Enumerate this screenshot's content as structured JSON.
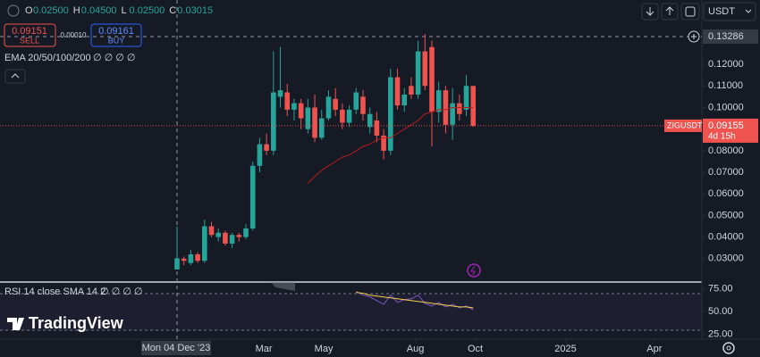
{
  "header": {
    "ohlc": [
      {
        "key": "O",
        "value": "0.02500"
      },
      {
        "key": "H",
        "value": "0.04500"
      },
      {
        "key": "L",
        "value": "0.02500"
      },
      {
        "key": "C",
        "value": "0.03015"
      }
    ],
    "sell": {
      "price": "0.09151",
      "label": "SELL"
    },
    "buy": {
      "price": "0.09161",
      "label": "BUY"
    },
    "spread": "0.00010",
    "ema_label": "EMA 20/50/100/200",
    "ema_values": "∅ ∅ ∅ ∅",
    "rsi_label": "RSI 14 close SMA 14 2",
    "rsi_values": "∅ ∅ ∅ ∅",
    "currency": "USDT",
    "brand": "TradingView",
    "symbol": "ZIGUSDT",
    "countdown": "4d 15h",
    "crosshair_date": "Mon 04 Dec '23"
  },
  "chart_data": [
    {
      "type": "candlestick",
      "up_color": "#26a69a",
      "down_color": "#ef5350",
      "open": [
        0.025,
        0.03,
        0.028,
        0.032,
        0.029,
        0.045,
        0.04,
        0.042,
        0.037,
        0.041,
        0.04,
        0.044,
        0.073,
        0.083,
        0.08,
        0.105,
        0.107,
        0.099,
        0.102,
        0.09,
        0.1,
        0.086,
        0.095,
        0.104,
        0.099,
        0.093,
        0.099,
        0.105,
        0.091,
        0.094,
        0.087,
        0.08,
        0.114,
        0.101,
        0.11,
        0.106,
        0.126,
        0.128,
        0.098,
        0.108,
        0.092,
        0.102,
        0.099,
        0.11
      ],
      "high": [
        0.045,
        0.031,
        0.034,
        0.033,
        0.048,
        0.047,
        0.044,
        0.043,
        0.042,
        0.042,
        0.046,
        0.075,
        0.086,
        0.088,
        0.126,
        0.128,
        0.111,
        0.104,
        0.104,
        0.104,
        0.106,
        0.099,
        0.108,
        0.109,
        0.102,
        0.101,
        0.109,
        0.108,
        0.1,
        0.098,
        0.09,
        0.118,
        0.118,
        0.109,
        0.114,
        0.131,
        0.134,
        0.131,
        0.112,
        0.11,
        0.109,
        0.106,
        0.115,
        0.11
      ],
      "low": [
        0.025,
        0.027,
        0.027,
        0.028,
        0.028,
        0.04,
        0.038,
        0.036,
        0.035,
        0.038,
        0.039,
        0.043,
        0.07,
        0.078,
        0.078,
        0.1,
        0.096,
        0.094,
        0.09,
        0.088,
        0.084,
        0.085,
        0.094,
        0.096,
        0.09,
        0.091,
        0.097,
        0.094,
        0.088,
        0.084,
        0.076,
        0.078,
        0.099,
        0.098,
        0.104,
        0.104,
        0.108,
        0.082,
        0.093,
        0.088,
        0.085,
        0.094,
        0.096,
        0.091
      ],
      "close": [
        0.03015,
        0.029,
        0.032,
        0.029,
        0.045,
        0.041,
        0.042,
        0.037,
        0.041,
        0.04,
        0.044,
        0.073,
        0.083,
        0.08,
        0.107,
        0.108,
        0.099,
        0.102,
        0.095,
        0.1,
        0.086,
        0.095,
        0.105,
        0.099,
        0.093,
        0.099,
        0.107,
        0.097,
        0.097,
        0.087,
        0.08,
        0.114,
        0.101,
        0.106,
        0.106,
        0.126,
        0.11,
        0.098,
        0.108,
        0.092,
        0.102,
        0.097,
        0.11,
        0.09155
      ],
      "series": [
        {
          "name": "EMA",
          "color": "#b71c1c",
          "values": [
            null,
            null,
            null,
            null,
            null,
            null,
            null,
            null,
            null,
            null,
            null,
            null,
            null,
            null,
            null,
            null,
            null,
            null,
            null,
            0.065,
            0.068,
            0.071,
            0.073,
            0.075,
            0.077,
            0.078,
            0.08,
            0.082,
            0.083,
            0.085,
            0.086,
            0.086,
            0.088,
            0.09,
            0.092,
            0.094,
            0.097,
            0.098,
            0.099,
            0.099,
            0.1,
            0.1,
            0.1,
            0.1
          ]
        }
      ],
      "last_price": 0.09155,
      "crosshair_price": 0.13286,
      "xlim": [
        -25.7,
        76.2
      ],
      "xticks": [
        {
          "value": 12.6,
          "label": "Mar"
        },
        {
          "value": 21.3,
          "label": "May"
        },
        {
          "value": 34.6,
          "label": "Aug"
        },
        {
          "value": 43.3,
          "label": "Oct"
        },
        {
          "value": 56.4,
          "label": "2025"
        },
        {
          "value": 69.3,
          "label": "Apr"
        }
      ],
      "ylim": [
        0.0196,
        0.1498
      ],
      "yticks": [
        {
          "value": 0.03,
          "label": "0.03000"
        },
        {
          "value": 0.04,
          "label": "0.04000"
        },
        {
          "value": 0.05,
          "label": "0.05000"
        },
        {
          "value": 0.06,
          "label": "0.06000"
        },
        {
          "value": 0.07,
          "label": "0.07000"
        },
        {
          "value": 0.08,
          "label": "0.08000"
        },
        {
          "value": 0.1,
          "label": "0.10000"
        },
        {
          "value": 0.11,
          "label": "0.11000"
        },
        {
          "value": 0.12,
          "label": "0.12000"
        }
      ]
    },
    {
      "type": "line",
      "ylim": [
        19.6,
        82.4
      ],
      "yticks": [
        {
          "value": 25,
          "label": "25.00"
        },
        {
          "value": 50,
          "label": "50.00"
        },
        {
          "value": 75,
          "label": "75.00"
        }
      ],
      "series": [
        {
          "name": "RSI",
          "color": "#7e57c2",
          "values": [
            null,
            null,
            null,
            null,
            null,
            null,
            null,
            null,
            null,
            null,
            null,
            null,
            null,
            null,
            null,
            null,
            null,
            null,
            null,
            null,
            null,
            null,
            null,
            null,
            null,
            null,
            72,
            68,
            66,
            62,
            58,
            68,
            60,
            63,
            64,
            68,
            59,
            56,
            60,
            55,
            58,
            54,
            56,
            52
          ]
        },
        {
          "name": "SMA",
          "color": "#f7d04a",
          "values": [
            null,
            null,
            null,
            null,
            null,
            null,
            null,
            null,
            null,
            null,
            null,
            null,
            null,
            null,
            null,
            null,
            null,
            null,
            null,
            null,
            null,
            null,
            null,
            null,
            null,
            null,
            71,
            70,
            68,
            67,
            66,
            65,
            64,
            63,
            62,
            61,
            60,
            59,
            58,
            57,
            56,
            55,
            55,
            54
          ]
        }
      ]
    }
  ]
}
